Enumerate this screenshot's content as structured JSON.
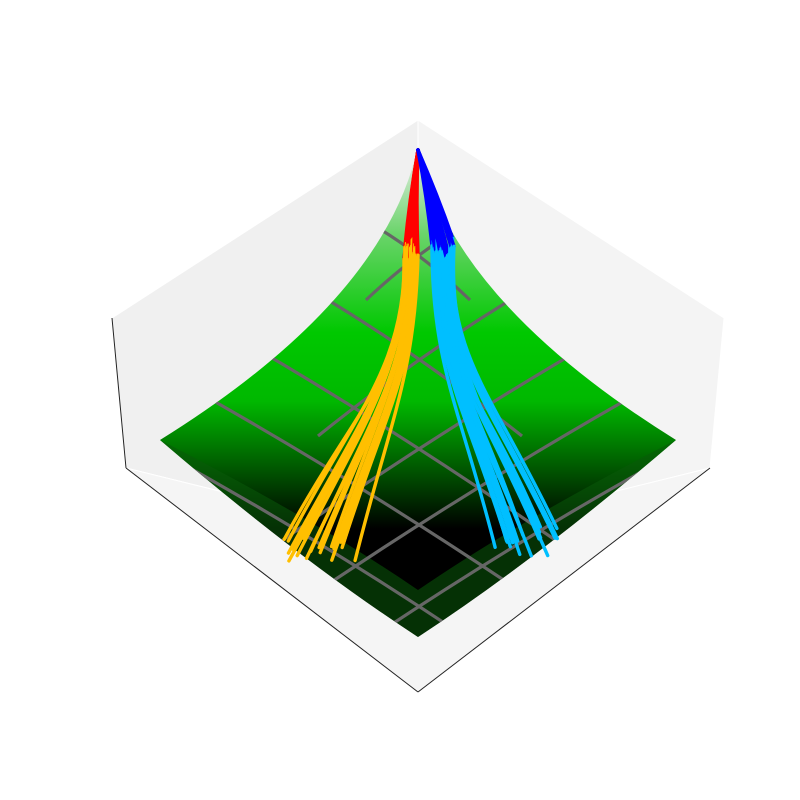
{
  "chart_data": {
    "type": "surface3d",
    "title": "",
    "surface": {
      "colormap": [
        "#000000",
        "#00c400",
        "#ffffff"
      ],
      "grid_lines": true,
      "grid_color": "#666666",
      "shape": "inverted pyramid peak"
    },
    "series": [
      {
        "role": "trajectory-bundle-left",
        "colors": [
          "#ff0000",
          "#ffbf00"
        ],
        "count": 18
      },
      {
        "role": "trajectory-bundle-right",
        "colors": [
          "#0000ff",
          "#00bfff"
        ],
        "count": 18
      }
    ],
    "axes": {
      "ticks": false,
      "labels": false,
      "panes": true,
      "pane_color": "#f2f2f2"
    },
    "colors": {
      "red": "#ff0000",
      "orange": "#ffbf00",
      "blue": "#0000ff",
      "cyan": "#00bfff",
      "pane": "#f2f2f2",
      "edge": "#222222"
    }
  }
}
